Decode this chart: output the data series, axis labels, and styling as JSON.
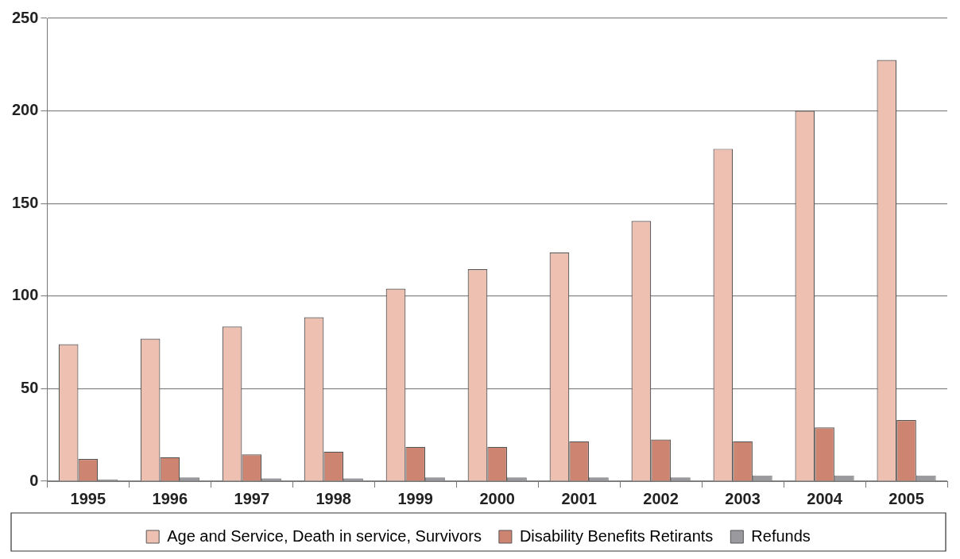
{
  "chart_data": {
    "type": "bar",
    "categories": [
      "1995",
      "1996",
      "1997",
      "1998",
      "1999",
      "2000",
      "2001",
      "2002",
      "2003",
      "2004",
      "2005"
    ],
    "series": [
      {
        "name": "Age and Service, Death in service, Survivors",
        "color": "#edc0b2",
        "values": [
          74,
          77,
          83.5,
          88.5,
          104,
          114.5,
          123.5,
          140.5,
          179.5,
          200,
          227.5
        ]
      },
      {
        "name": "Disability Benefits Retirants",
        "color": "#cd8470",
        "values": [
          12,
          13,
          14.5,
          16,
          18.5,
          18.5,
          21.5,
          22.5,
          21.5,
          29,
          33
        ]
      },
      {
        "name": "Refunds",
        "color": "#9a9a9e",
        "values": [
          1,
          2,
          1.5,
          1.5,
          2,
          2,
          2,
          2,
          3,
          3,
          3
        ]
      }
    ],
    "ylim": [
      0,
      250
    ],
    "yticks": [
      0,
      50,
      100,
      150,
      200,
      250
    ],
    "grid": "y",
    "legend": "bottom"
  }
}
